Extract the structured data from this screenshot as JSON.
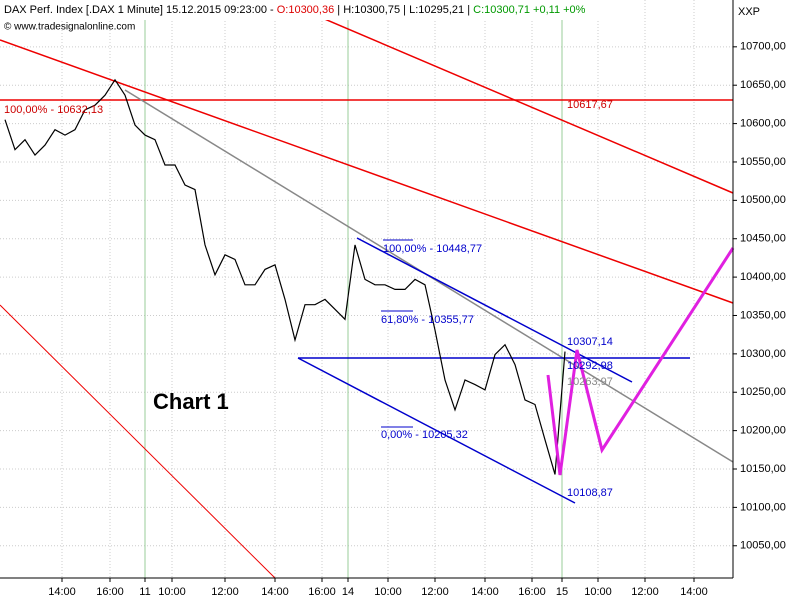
{
  "header": {
    "title": "DAX Perf. Index [.DAX  1 Minute] 15.12.2015 09:23:00 - ",
    "open": "O:10300,36",
    "high": "H:10300,75",
    "low": "L:10295,21",
    "close": "C:10300,71 +0,11 +0%"
  },
  "copyright": "© www.tradesignalonline.com",
  "axis_name": "XXP",
  "chart_label": "Chart 1",
  "chart_data": {
    "type": "line",
    "categories": [
      null,
      null,
      null,
      null,
      null,
      null,
      null,
      null,
      null,
      null,
      null,
      null,
      null,
      null,
      null,
      null,
      null,
      null,
      null,
      null,
      null,
      null,
      null,
      null,
      null,
      null,
      null,
      null,
      null,
      null,
      null,
      null,
      null,
      null,
      null,
      null,
      null,
      null,
      null,
      null,
      null,
      null,
      null,
      null,
      null,
      null,
      null,
      null,
      null,
      null,
      null,
      null,
      null,
      null,
      null,
      null,
      null
    ],
    "series": [
      {
        "name": "DAX Perf. Index",
        "color": "#000000",
        "values": [
          10605,
          10566,
          10579,
          10559,
          10572,
          10592,
          10585,
          10592,
          10618,
          10624,
          10637,
          10657,
          10637,
          10598,
          10585,
          10579,
          10546,
          10546,
          10520,
          10514,
          10442,
          10403,
          10429,
          10423,
          10390,
          10390,
          10410,
          10416,
          10371,
          10318,
          10364,
          10364,
          10371,
          10358,
          10345,
          10442,
          10397,
          10390,
          10390,
          10384,
          10384,
          10397,
          10390,
          10331,
          10266,
          10227,
          10266,
          10260,
          10253,
          10299,
          10312,
          10286,
          10240,
          10234,
          10188,
          10143,
          10303
        ]
      }
    ],
    "ylim": [
      10008,
      10761
    ],
    "yticks": [
      {
        "value": 10050,
        "label": "10050,00"
      },
      {
        "value": 10100,
        "label": "10100,00"
      },
      {
        "value": 10150,
        "label": "10150,00"
      },
      {
        "value": 10200,
        "label": "10200,00"
      },
      {
        "value": 10250,
        "label": "10250,00"
      },
      {
        "value": 10300,
        "label": "10300,00"
      },
      {
        "value": 10350,
        "label": "10350,00"
      },
      {
        "value": 10400,
        "label": "10400,00"
      },
      {
        "value": 10450,
        "label": "10450,00"
      },
      {
        "value": 10500,
        "label": "10500,00"
      },
      {
        "value": 10550,
        "label": "10550,00"
      },
      {
        "value": 10600,
        "label": "10600,00"
      },
      {
        "value": 10650,
        "label": "10650,00"
      },
      {
        "value": 10700,
        "label": "10700,00"
      }
    ],
    "xtick_labels": [
      "14:00",
      "16:00",
      "11",
      "10:00",
      "12:00",
      "14:00",
      "16:00",
      "14",
      "10:00",
      "12:00",
      "14:00",
      "16:00",
      "15",
      "10:00",
      "12:00",
      "14:00"
    ],
    "grid": true,
    "annotations": [
      "100,00% - 10632,13",
      "10617,67",
      "100,00% - 10448,77",
      "61,80% - 10355,77",
      "0,00% - 10205,32",
      "10307,14",
      "10292,98",
      "10263,97",
      "10108,87"
    ]
  }
}
